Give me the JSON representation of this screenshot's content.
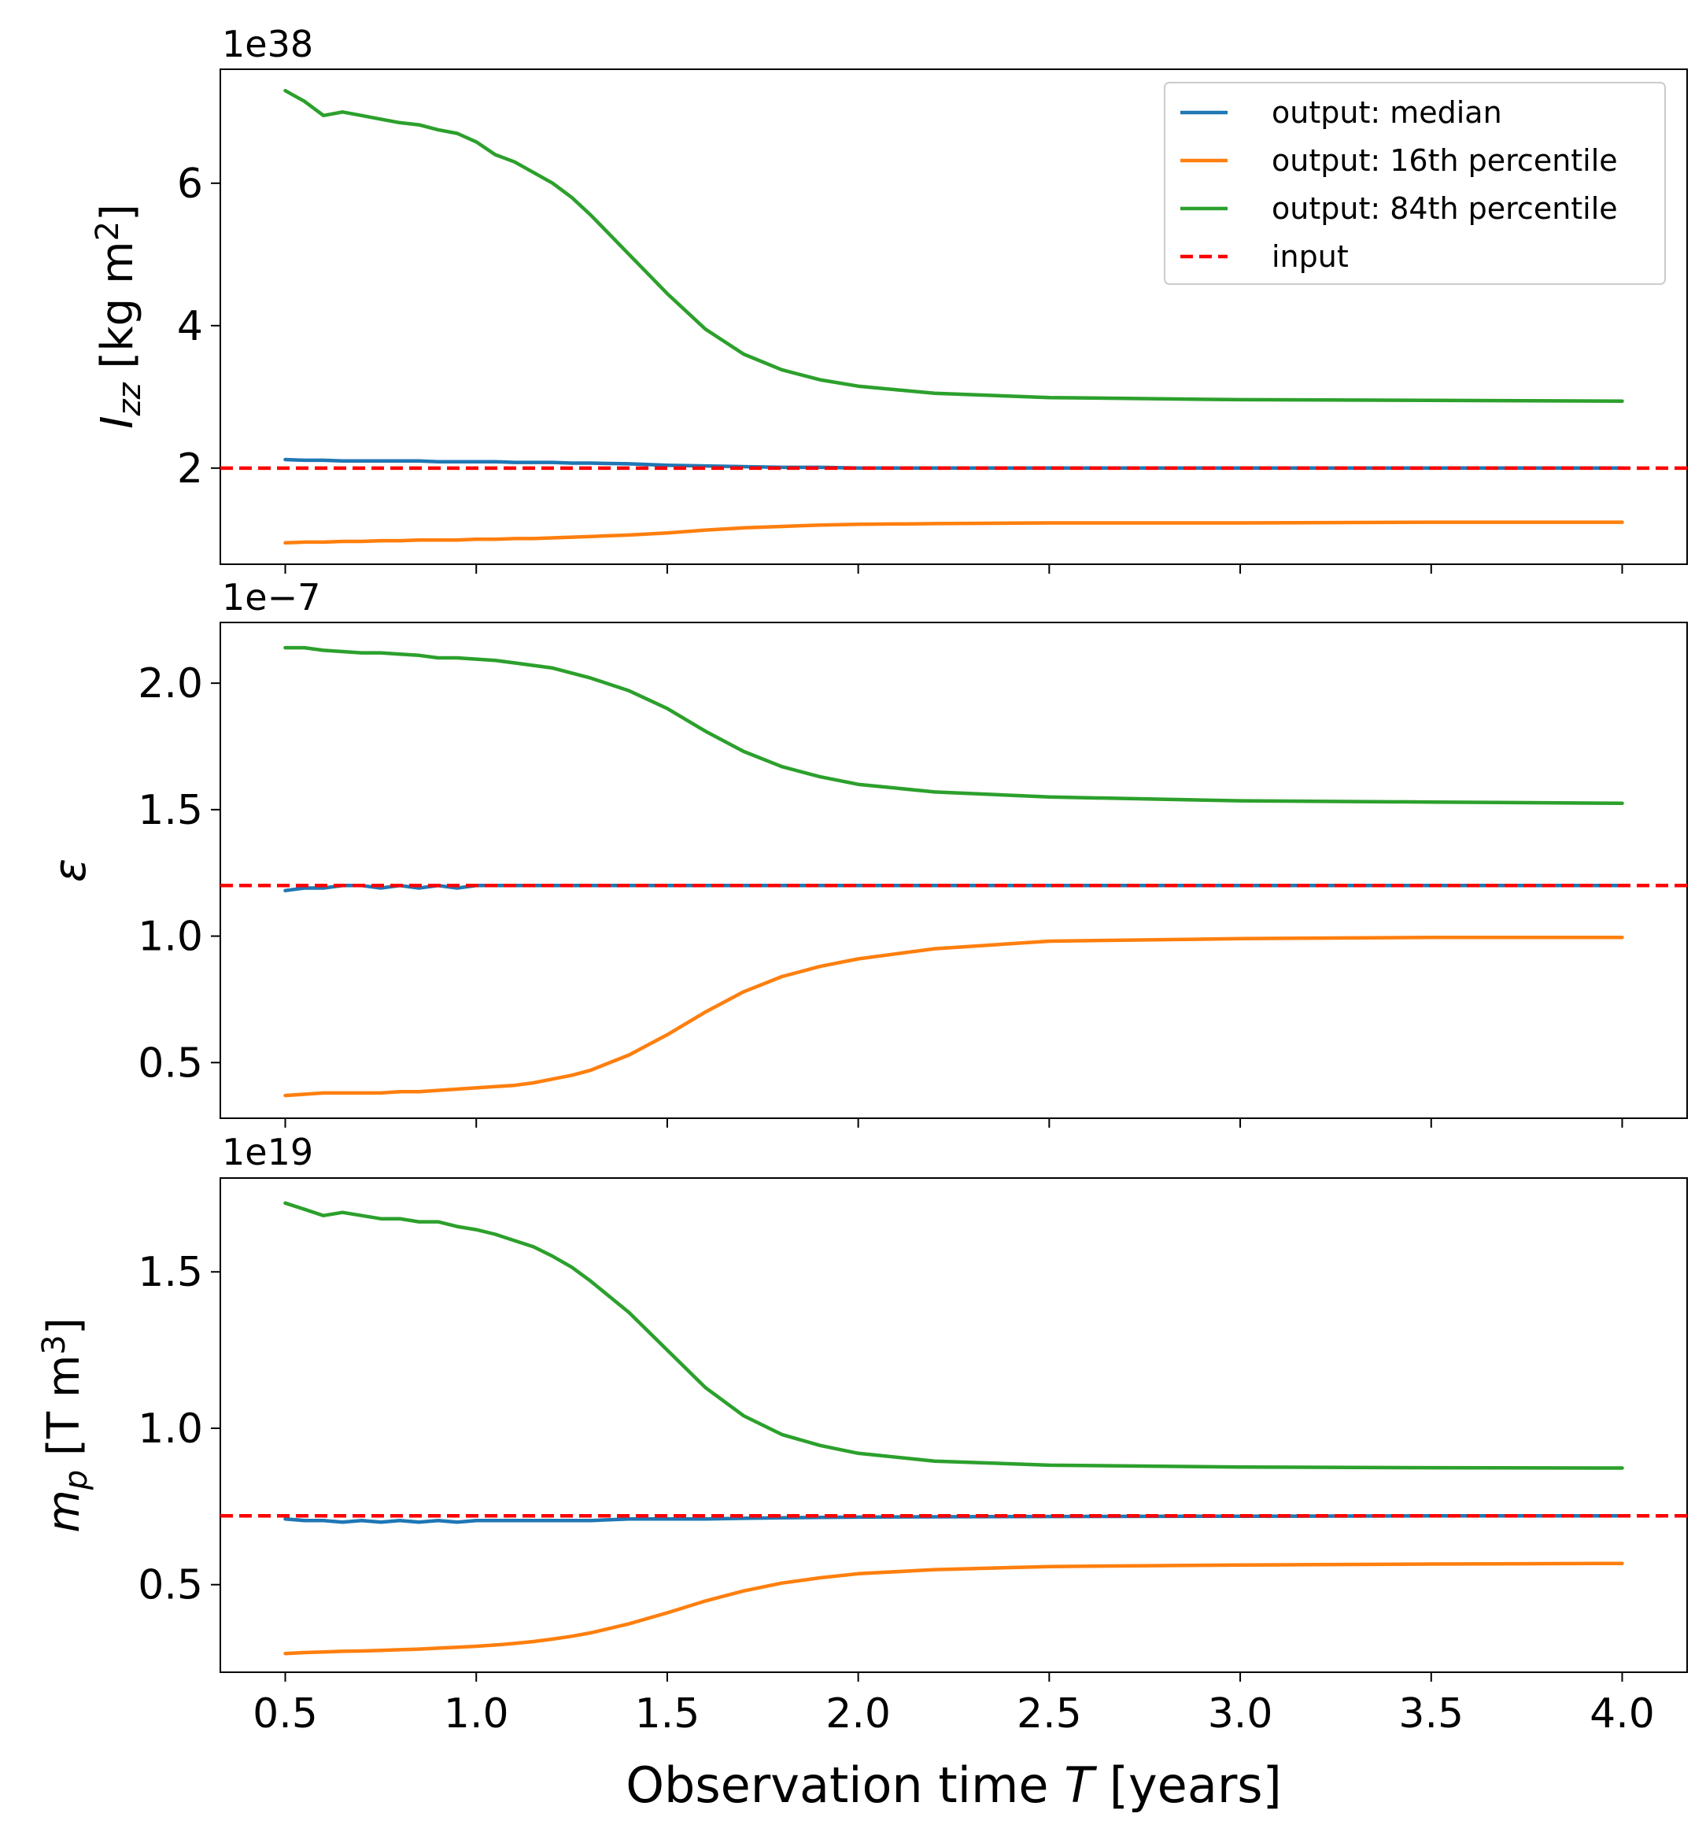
{
  "figure": {
    "xlabel_prefix": "Observation time ",
    "xlabel_var": "T",
    "xlabel_suffix": " [years]"
  },
  "legend": {
    "entries": [
      {
        "label": "output: median",
        "color": "#1f77b4",
        "dashed": false
      },
      {
        "label": "output: 16th percentile",
        "color": "#ff7f0e",
        "dashed": false
      },
      {
        "label": "output: 84th percentile",
        "color": "#2ca02c",
        "dashed": false
      },
      {
        "label": "input",
        "color": "#ff0000",
        "dashed": true
      }
    ]
  },
  "chart_data": [
    {
      "type": "line",
      "panel": "top",
      "ylabel": {
        "main": "I",
        "sub": "zz",
        "unit": " [kg m",
        "sup": "2",
        "close": "]"
      },
      "offset_text": "1e38",
      "xlim": [
        0.33,
        4.17
      ],
      "ylim": [
        0.65,
        7.6
      ],
      "xticks": [
        0.5,
        1.0,
        1.5,
        2.0,
        2.5,
        3.0,
        3.5,
        4.0
      ],
      "yticks": [
        2,
        4,
        6
      ],
      "ytick_labels": [
        "2",
        "4",
        "6"
      ],
      "hline": {
        "name": "input",
        "y": 2.0,
        "color": "#ff0000"
      },
      "x": [
        0.5,
        0.55,
        0.6,
        0.65,
        0.7,
        0.75,
        0.8,
        0.85,
        0.9,
        0.95,
        1.0,
        1.05,
        1.1,
        1.15,
        1.2,
        1.25,
        1.3,
        1.4,
        1.5,
        1.6,
        1.7,
        1.8,
        1.9,
        2.0,
        2.2,
        2.5,
        3.0,
        3.5,
        4.0
      ],
      "series": [
        {
          "name": "output: median",
          "color": "#1f77b4",
          "values": [
            2.12,
            2.11,
            2.11,
            2.1,
            2.1,
            2.1,
            2.1,
            2.1,
            2.09,
            2.09,
            2.09,
            2.09,
            2.08,
            2.08,
            2.08,
            2.07,
            2.07,
            2.06,
            2.04,
            2.03,
            2.02,
            2.01,
            2.01,
            2.0,
            2.0,
            2.0,
            2.0,
            2.0,
            2.0
          ]
        },
        {
          "name": "output: 16th percentile",
          "color": "#ff7f0e",
          "values": [
            0.95,
            0.96,
            0.96,
            0.97,
            0.97,
            0.98,
            0.98,
            0.99,
            0.99,
            0.99,
            1.0,
            1.0,
            1.01,
            1.01,
            1.02,
            1.03,
            1.04,
            1.06,
            1.09,
            1.13,
            1.16,
            1.18,
            1.2,
            1.21,
            1.22,
            1.23,
            1.23,
            1.24,
            1.24
          ]
        },
        {
          "name": "output: 84th percentile",
          "color": "#2ca02c",
          "values": [
            7.3,
            7.15,
            6.95,
            7.0,
            6.95,
            6.9,
            6.85,
            6.82,
            6.75,
            6.7,
            6.58,
            6.4,
            6.3,
            6.15,
            6.0,
            5.8,
            5.55,
            5.0,
            4.45,
            3.95,
            3.6,
            3.38,
            3.24,
            3.15,
            3.05,
            2.99,
            2.96,
            2.95,
            2.94
          ]
        }
      ]
    },
    {
      "type": "line",
      "panel": "middle",
      "ylabel": {
        "main": "ε",
        "sub": "",
        "unit": "",
        "sup": "",
        "close": ""
      },
      "offset_text": "1e−7",
      "xlim": [
        0.33,
        4.17
      ],
      "ylim": [
        0.28,
        2.24
      ],
      "xticks": [
        0.5,
        1.0,
        1.5,
        2.0,
        2.5,
        3.0,
        3.5,
        4.0
      ],
      "yticks": [
        0.5,
        1.0,
        1.5,
        2.0
      ],
      "ytick_labels": [
        "0.5",
        "1.0",
        "1.5",
        "2.0"
      ],
      "hline": {
        "name": "input",
        "y": 1.2,
        "color": "#ff0000"
      },
      "x": [
        0.5,
        0.55,
        0.6,
        0.65,
        0.7,
        0.75,
        0.8,
        0.85,
        0.9,
        0.95,
        1.0,
        1.05,
        1.1,
        1.15,
        1.2,
        1.25,
        1.3,
        1.4,
        1.5,
        1.6,
        1.7,
        1.8,
        1.9,
        2.0,
        2.2,
        2.5,
        3.0,
        3.5,
        4.0
      ],
      "series": [
        {
          "name": "output: median",
          "color": "#1f77b4",
          "values": [
            1.18,
            1.19,
            1.19,
            1.2,
            1.2,
            1.19,
            1.2,
            1.19,
            1.2,
            1.19,
            1.2,
            1.2,
            1.2,
            1.2,
            1.2,
            1.2,
            1.2,
            1.2,
            1.2,
            1.2,
            1.2,
            1.2,
            1.2,
            1.2,
            1.2,
            1.2,
            1.2,
            1.2,
            1.2
          ]
        },
        {
          "name": "output: 16th percentile",
          "color": "#ff7f0e",
          "values": [
            0.37,
            0.375,
            0.38,
            0.38,
            0.38,
            0.38,
            0.385,
            0.385,
            0.39,
            0.395,
            0.4,
            0.405,
            0.41,
            0.42,
            0.435,
            0.45,
            0.47,
            0.53,
            0.61,
            0.7,
            0.78,
            0.84,
            0.88,
            0.91,
            0.95,
            0.98,
            0.99,
            0.995,
            0.995
          ]
        },
        {
          "name": "output: 84th percentile",
          "color": "#2ca02c",
          "values": [
            2.14,
            2.14,
            2.13,
            2.125,
            2.12,
            2.12,
            2.115,
            2.11,
            2.1,
            2.1,
            2.095,
            2.09,
            2.08,
            2.07,
            2.06,
            2.04,
            2.02,
            1.97,
            1.9,
            1.81,
            1.73,
            1.67,
            1.63,
            1.6,
            1.57,
            1.55,
            1.535,
            1.53,
            1.525
          ]
        }
      ]
    },
    {
      "type": "line",
      "panel": "bottom",
      "ylabel": {
        "main": "m",
        "sub": "p",
        "unit": " [T m",
        "sup": "3",
        "close": "]"
      },
      "offset_text": "1e19",
      "xlim": [
        0.33,
        4.17
      ],
      "ylim": [
        0.22,
        1.8
      ],
      "xticks": [
        0.5,
        1.0,
        1.5,
        2.0,
        2.5,
        3.0,
        3.5,
        4.0
      ],
      "xtick_labels": [
        "0.5",
        "1.0",
        "1.5",
        "2.0",
        "2.5",
        "3.0",
        "3.5",
        "4.0"
      ],
      "yticks": [
        0.5,
        1.0,
        1.5
      ],
      "ytick_labels": [
        "0.5",
        "1.0",
        "1.5"
      ],
      "hline": {
        "name": "input",
        "y": 0.72,
        "color": "#ff0000"
      },
      "x": [
        0.5,
        0.55,
        0.6,
        0.65,
        0.7,
        0.75,
        0.8,
        0.85,
        0.9,
        0.95,
        1.0,
        1.05,
        1.1,
        1.15,
        1.2,
        1.25,
        1.3,
        1.4,
        1.5,
        1.6,
        1.7,
        1.8,
        1.9,
        2.0,
        2.2,
        2.5,
        3.0,
        3.5,
        4.0
      ],
      "series": [
        {
          "name": "output: median",
          "color": "#1f77b4",
          "values": [
            0.71,
            0.705,
            0.705,
            0.7,
            0.705,
            0.7,
            0.705,
            0.7,
            0.705,
            0.7,
            0.705,
            0.705,
            0.705,
            0.705,
            0.705,
            0.705,
            0.705,
            0.71,
            0.71,
            0.71,
            0.712,
            0.714,
            0.715,
            0.716,
            0.717,
            0.718,
            0.719,
            0.72,
            0.72
          ]
        },
        {
          "name": "output: 16th percentile",
          "color": "#ff7f0e",
          "values": [
            0.28,
            0.283,
            0.285,
            0.287,
            0.288,
            0.29,
            0.292,
            0.294,
            0.297,
            0.3,
            0.303,
            0.307,
            0.312,
            0.318,
            0.326,
            0.335,
            0.346,
            0.375,
            0.41,
            0.448,
            0.48,
            0.505,
            0.522,
            0.535,
            0.548,
            0.558,
            0.563,
            0.566,
            0.568
          ]
        },
        {
          "name": "output: 84th percentile",
          "color": "#2ca02c",
          "values": [
            1.72,
            1.7,
            1.68,
            1.69,
            1.68,
            1.67,
            1.67,
            1.66,
            1.66,
            1.645,
            1.635,
            1.62,
            1.6,
            1.58,
            1.55,
            1.515,
            1.47,
            1.37,
            1.25,
            1.13,
            1.04,
            0.98,
            0.945,
            0.92,
            0.895,
            0.882,
            0.876,
            0.874,
            0.873
          ]
        }
      ]
    }
  ]
}
